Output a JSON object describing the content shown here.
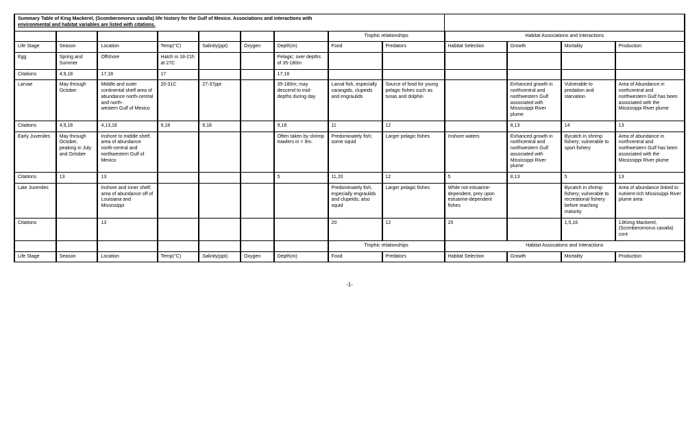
{
  "title": {
    "line1": "Summary Table of King Mackerel, (Scomberomorus cavalla) life history for the Gulf of Mexico.  Associations and interactions with",
    "line2": "environmental and habitat variables are listed with citations."
  },
  "section_headers": {
    "trophic": "Trophic relationships",
    "habitat": "Habitat Associations and Interactions",
    "habitat_alt": "Habitat Assocations and Interactions"
  },
  "columns": [
    "Life Stage",
    "Season",
    "Location",
    "Temp(°C)",
    "Salinity(ppt)",
    "Oxygen",
    "Depth(m)",
    "Food",
    "Predators",
    "Habitat Selection",
    "Growth",
    "Mortality",
    "Production"
  ],
  "rows": [
    {
      "cells": [
        "Egg",
        "Spring and Summer",
        "Offshore",
        "Hatch in 18-21h at 27C",
        "",
        "",
        "Pelagic; over depths of 35-180m",
        "",
        "",
        "",
        "",
        "",
        ""
      ]
    },
    {
      "cells": [
        "Citations",
        "4,9,18",
        "17,18",
        "17",
        "",
        "",
        "17,18",
        "",
        "",
        "",
        "",
        "",
        ""
      ]
    },
    {
      "cells": [
        "Larvae",
        "May through October",
        "Middle and outer continental shelf area of abundance north-central and north-\nwestern Gulf of Mexico",
        "20-31C",
        "27-37ppt",
        "",
        "35-180m; may descend to mid-depths during day",
        "Larval fish, especially carangids, clupeids and engraulids",
        "Source of food for young pelagic fishes such as tunas and dolphin",
        "",
        "Enhanced growth in northcentral and northwestern Gulf associated with Mississippi River plume",
        "Vulnerable to predation and starvation",
        "Area of Abundance in northcentral and northwestern Gulf has been associated with the Mississippi River plume"
      ]
    },
    {
      "cells": [
        "Citations",
        "4,9,18",
        "4,13,18",
        "9,18",
        "9,18",
        "",
        "9,18",
        "11",
        "12",
        "",
        "8,13",
        "14",
        "13"
      ]
    },
    {
      "cells": [
        "Early Juveniles",
        "May through October, peaking in July and October",
        "Inshore to middle shelf; area of abundance north-central and northwestern Gulf of Mexico",
        "",
        "",
        "",
        "Often taken by shrimp trawlers in < 9m.",
        "Predominately fish; some squid",
        "Larger pelagic fishes",
        "Inshore waters",
        "Enhanced growth in northcentral and northwestern Gulf associated with Mississippi River plume",
        "Bycatch in shrimp fishery; vulnerable to sport fishery",
        "Area of abundance in northcentral and northwestern Gulf has been associated with the Mississippi River plume"
      ]
    },
    {
      "cells": [
        "Citations",
        "13",
        "13",
        "",
        "",
        "",
        "5",
        "11,20",
        "12",
        "5",
        "8,13",
        "5",
        "13"
      ]
    },
    {
      "cells": [
        "Late Juveniles",
        "",
        "Inshore and inner shelf; area of abundance off of Louisiana and Mississippi",
        "",
        "",
        "",
        "",
        "Predominately fish, especially engraulids and clupeids; also squid",
        "Larger pelagic fishes",
        "While not estuarine-dependent, prey upon estuarine-dependent fishes",
        "",
        "Bycatch in shrimp fishery; vulnerable to recreational fishery before reaching maturity",
        "Area of abundance linked to nutrient-rich Mississippi River plume area"
      ]
    },
    {
      "cells": [
        "Citations",
        "",
        "13",
        "",
        "",
        "",
        "",
        "20",
        "12",
        "20",
        "",
        "1,5,16",
        "13Kimg Mackerel, (Scomberomorus cavalla) cont"
      ]
    }
  ],
  "page_number": "-1-"
}
